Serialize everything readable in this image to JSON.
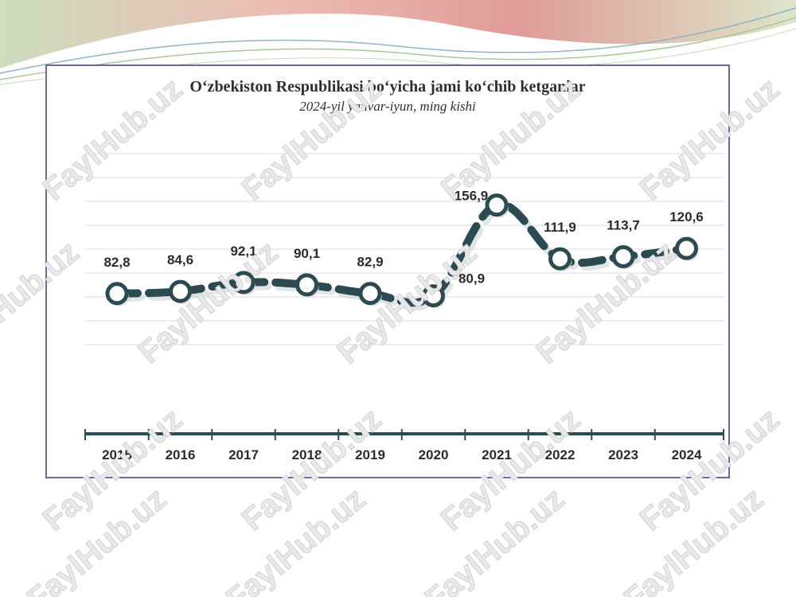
{
  "chart_data": {
    "type": "line",
    "title": "O‘zbekiston Respublikasi bo‘yicha jami ko‘chib ketganlar",
    "subtitle": "2024-yil yanvar-iyun, ming kishi",
    "xlabel": "",
    "ylabel": "",
    "categories": [
      "2015",
      "2016",
      "2017",
      "2018",
      "2019",
      "2020",
      "2021",
      "2022",
      "2023",
      "2024"
    ],
    "values": [
      82.8,
      84.6,
      92.1,
      90.1,
      82.9,
      80.9,
      156.9,
      111.9,
      113.7,
      120.6
    ],
    "data_labels": [
      "82,8",
      "84,6",
      "92,1",
      "90,1",
      "82,9",
      "80,9",
      "156,9",
      "111,9",
      "113,7",
      "120,6"
    ],
    "ylim": [
      0,
      200
    ],
    "grid": true,
    "legend": "none",
    "colors": {
      "line": "#2c4a52",
      "marker_fill": "#ffffff",
      "grid": "#e6e6e6",
      "frame": "#7a5ea8"
    }
  },
  "watermark": "FaylHub.uz"
}
